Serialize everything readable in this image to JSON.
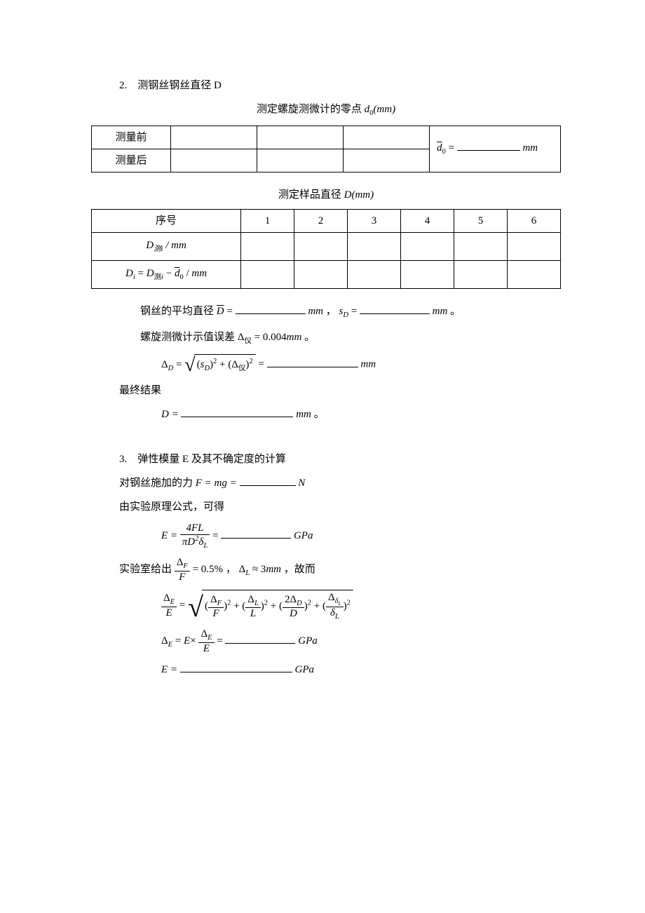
{
  "section2": {
    "title": "2.　测钢丝钢丝直径 D",
    "caption1_prefix": "测定螺旋测微计的零点",
    "caption1_var": "d",
    "caption1_sub": "0",
    "caption1_unit": "(mm)",
    "table1": {
      "row1_label": "测量前",
      "row2_label": "测量后",
      "result_var": "d̄",
      "result_sub": "0",
      "result_eq": " = ",
      "result_unit": "mm"
    },
    "caption2_prefix": "测定样品直径",
    "caption2_var": "D",
    "caption2_unit": "(mm)",
    "table2": {
      "header0": "序号",
      "cols": [
        "1",
        "2",
        "3",
        "4",
        "5",
        "6"
      ],
      "row1_label_html": "D<sub>测i</sub> / mm",
      "row2_label_html": "D<sub>i</sub> = D<sub>测i</sub> − d̄<sub>0</sub> / mm"
    },
    "avg_line_prefix": "钢丝的平均直径",
    "avg_D": "D̄",
    "eq": " = ",
    "mm": "mm",
    "comma": " ， ",
    "sD": "s",
    "sD_sub": "D",
    "period": " 。",
    "inst_err_prefix": "螺旋测微计示值误差",
    "delta": "Δ",
    "inst_sub": "仪",
    "inst_val": " = 0.004",
    "inst_unit": "mm",
    "deltaD_line": {
      "lhs_sub": "D",
      "body": "(s<sub>D</sub>)<sup>2</sup> + (Δ<sub>仪</sub>)<sup>2</sup>",
      "unit": "mm"
    },
    "final_label": "最终结果",
    "final_D": "D = ",
    "final_unit": "mm"
  },
  "section3": {
    "title": "3.　弹性模量 E 及其不确定度的计算",
    "force_line_prefix": "对钢丝施加的力",
    "force_expr": "F = mg = ",
    "force_unit": "N",
    "principle": "由实验原理公式，可得",
    "E_formula": {
      "lhs": "E = ",
      "num": "4FL",
      "den": "πD<sup>2</sup>δ<sub>L</sub>",
      "unit": "GPa"
    },
    "given_prefix": "实验室给出",
    "given_frac_num": "Δ<sub>F</sub>",
    "given_frac_den": "F",
    "given_val": " = 0.5%",
    "given_comma": " ， ",
    "given_deltaL": "Δ<sub>L</sub> ≈ 3mm",
    "given_suffix": " ，故而",
    "rel_err": {
      "lhs_num": "Δ<sub>E</sub>",
      "lhs_den": "E",
      "term1_num": "Δ<sub>F</sub>",
      "term1_den": "F",
      "term2_num": "Δ<sub>L</sub>",
      "term2_den": "L",
      "term3_num": "2Δ<sub>D</sub>",
      "term3_den": "D",
      "term4_num": "Δ<sub>δ<sub>L</sub></sub>",
      "term4_den": "δ<sub>L</sub>"
    },
    "deltaE_line": {
      "lhs": "Δ<sub>E</sub> = E×",
      "num": "Δ<sub>E</sub>",
      "den": "E",
      "unit": "GPa"
    },
    "E_result": {
      "lhs": "E = ",
      "unit": "GPa"
    }
  }
}
